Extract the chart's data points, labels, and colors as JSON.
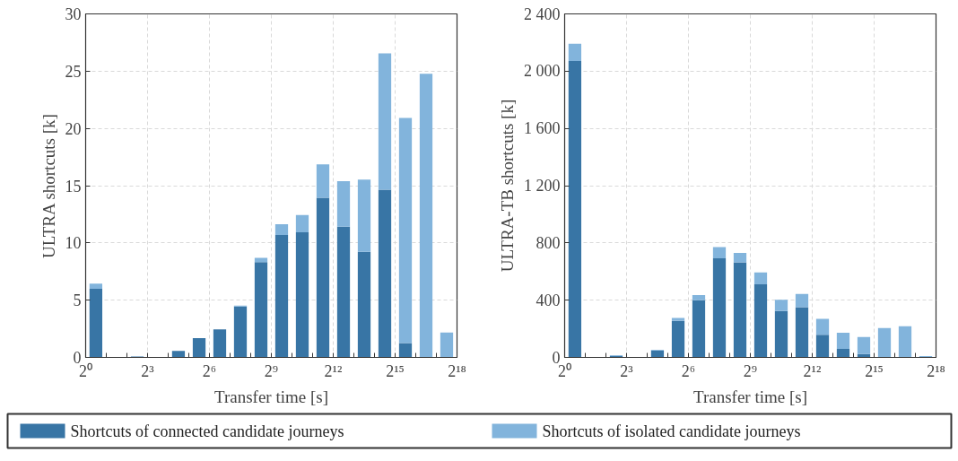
{
  "chart_data": [
    {
      "type": "bar",
      "stacked": true,
      "log": "x",
      "xlabel": "Transfer time [s]",
      "ylabel": "ULTRA shortcuts [k]",
      "x": [
        1.41,
        2.83,
        5.66,
        11.3,
        22.6,
        45.3,
        90.5,
        181,
        362,
        724,
        1448,
        2896,
        5793,
        11585,
        23170,
        46341,
        92682,
        185364
      ],
      "xlim": [
        1,
        262144
      ],
      "xticks": [
        {
          "value": 1,
          "label": "2⁰"
        },
        {
          "value": 2,
          "label": null
        },
        {
          "value": 4,
          "label": null
        },
        {
          "value": 8,
          "label": "2³"
        },
        {
          "value": 16,
          "label": null
        },
        {
          "value": 32,
          "label": null
        },
        {
          "value": 64,
          "label": "2⁶"
        },
        {
          "value": 128,
          "label": null
        },
        {
          "value": 256,
          "label": null
        },
        {
          "value": 512,
          "label": "2⁹"
        },
        {
          "value": 1024,
          "label": null
        },
        {
          "value": 2048,
          "label": null
        },
        {
          "value": 4096,
          "label": "2¹²"
        },
        {
          "value": 8192,
          "label": null
        },
        {
          "value": 16384,
          "label": null
        },
        {
          "value": 32768,
          "label": "2¹⁵"
        },
        {
          "value": 65536,
          "label": null
        },
        {
          "value": 131072,
          "label": null
        },
        {
          "value": 262144,
          "label": "2¹⁸"
        }
      ],
      "ylim": [
        0,
        30
      ],
      "yticks": [
        0,
        5,
        10,
        15,
        20,
        25,
        30
      ],
      "grid": true,
      "legend": "bottom",
      "series": [
        {
          "name": "Shortcuts of connected candidate journeys",
          "color": "#3875a5",
          "values": [
            6.0,
            0,
            0.08,
            0,
            0.56,
            1.69,
            2.44,
            4.44,
            8.33,
            10.69,
            10.92,
            13.94,
            11.42,
            9.22,
            14.64,
            1.25,
            0,
            0
          ]
        },
        {
          "name": "Shortcuts of isolated candidate journeys",
          "color": "#82b4dc",
          "values": [
            0.44,
            0,
            0,
            0,
            0,
            0,
            0,
            0.09,
            0.36,
            0.95,
            1.52,
            2.92,
            3.97,
            6.31,
            11.92,
            19.67,
            24.78,
            2.17
          ]
        }
      ]
    },
    {
      "type": "bar",
      "stacked": true,
      "log": "x",
      "xlabel": "Transfer time [s]",
      "ylabel": "ULTRA-TB shortcuts [k]",
      "x": [
        1.41,
        2.83,
        5.66,
        11.3,
        22.6,
        45.3,
        90.5,
        181,
        362,
        724,
        1448,
        2896,
        5793,
        11585,
        23170,
        46341,
        92682,
        185364
      ],
      "xlim": [
        1,
        262144
      ],
      "xticks": [
        {
          "value": 1,
          "label": "2⁰"
        },
        {
          "value": 2,
          "label": null
        },
        {
          "value": 4,
          "label": null
        },
        {
          "value": 8,
          "label": "2³"
        },
        {
          "value": 16,
          "label": null
        },
        {
          "value": 32,
          "label": null
        },
        {
          "value": 64,
          "label": "2⁶"
        },
        {
          "value": 128,
          "label": null
        },
        {
          "value": 256,
          "label": null
        },
        {
          "value": 512,
          "label": "2⁹"
        },
        {
          "value": 1024,
          "label": null
        },
        {
          "value": 2048,
          "label": null
        },
        {
          "value": 4096,
          "label": "2¹²"
        },
        {
          "value": 8192,
          "label": null
        },
        {
          "value": 16384,
          "label": null
        },
        {
          "value": 32768,
          "label": "2¹⁵"
        },
        {
          "value": 65536,
          "label": null
        },
        {
          "value": 131072,
          "label": null
        },
        {
          "value": 262144,
          "label": "2¹⁸"
        }
      ],
      "ylim": [
        0,
        2400
      ],
      "yticks": [
        0,
        400,
        800,
        {
          "value": 1200,
          "label": "1 200"
        },
        {
          "value": 1600,
          "label": "1 600"
        },
        {
          "value": 2000,
          "label": "2 000"
        },
        {
          "value": 2400,
          "label": "2 400"
        }
      ],
      "grid": true,
      "series": [
        {
          "color": "#3875a5",
          "values": [
            2071,
            0,
            11,
            0,
            49,
            255,
            400,
            693,
            664,
            510,
            324,
            351,
            158,
            60,
            24,
            0,
            0,
            0
          ]
        },
        {
          "color": "#82b4dc",
          "values": [
            120,
            0,
            5,
            0,
            4,
            20,
            35,
            77,
            66,
            83,
            78,
            93,
            111,
            113,
            118,
            206,
            218,
            9
          ]
        }
      ]
    }
  ]
}
